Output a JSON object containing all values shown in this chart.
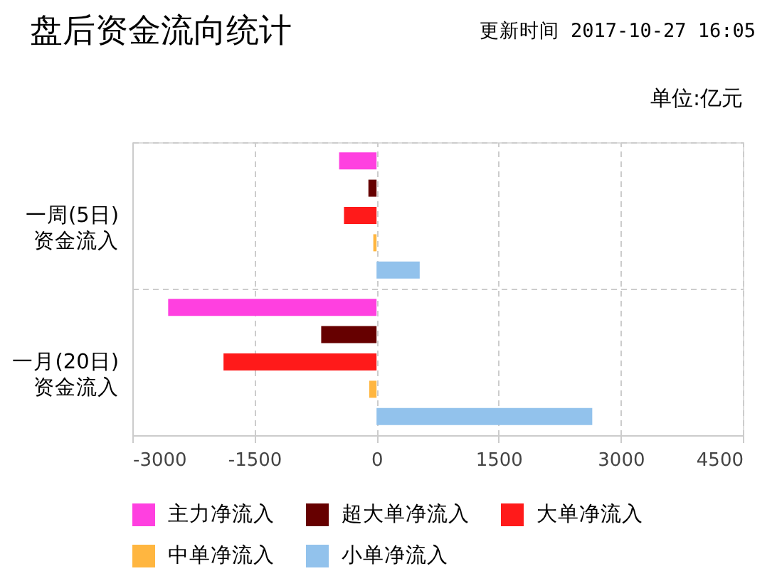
{
  "chart_data": {
    "type": "bar",
    "orientation": "horizontal",
    "title": "盘后资金流向统计",
    "subtitle": "更新时间 2017-10-27 16:05",
    "annotations": [
      "单位:亿元"
    ],
    "categories": [
      "一周(5日)\n资金流入",
      "一月(20日)\n资金流入"
    ],
    "series": [
      {
        "name": "主力净流入",
        "color": "#ff40e0",
        "values": [
          -460,
          -2560
        ]
      },
      {
        "name": "超大单净流入",
        "color": "#660000",
        "values": [
          -100,
          -680
        ]
      },
      {
        "name": "大单净流入",
        "color": "#ff1a1a",
        "values": [
          -400,
          -1880
        ]
      },
      {
        "name": "中单净流入",
        "color": "#ffb640",
        "values": [
          -40,
          -90
        ]
      },
      {
        "name": "小单净流入",
        "color": "#92c2ec",
        "values": [
          530,
          2650
        ]
      }
    ],
    "xlim": [
      -3000,
      4500
    ],
    "xticks": [
      -3000,
      -1500,
      0,
      1500,
      3000,
      4500
    ],
    "grid": true,
    "legend": "bottom"
  }
}
